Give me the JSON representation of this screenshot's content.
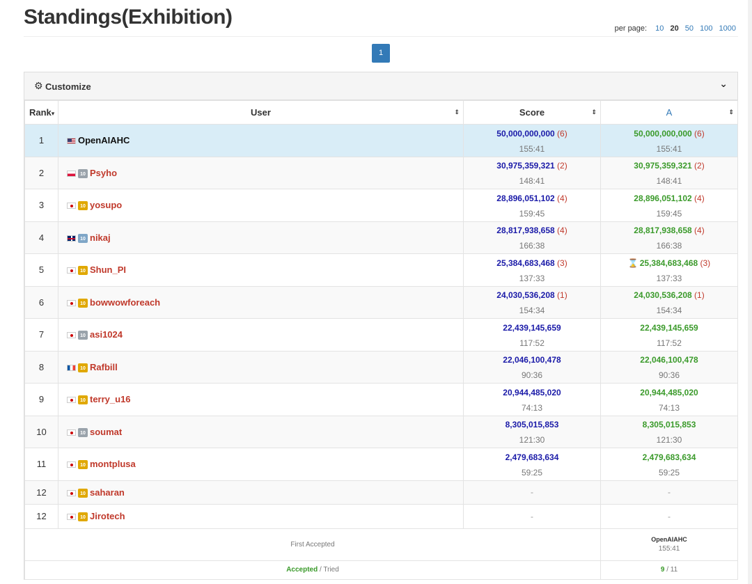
{
  "page": {
    "title": "Standings(Exhibition)",
    "per_page_label": "per page:",
    "per_page_options": [
      "10",
      "20",
      "50",
      "100",
      "1000"
    ],
    "per_page_selected": "20",
    "current_page": "1"
  },
  "customize": {
    "label": "Customize",
    "gear_icon": "gear-icon",
    "chevron_icon": "chevron-down-icon"
  },
  "table": {
    "headers": {
      "rank": "Rank",
      "user": "User",
      "score": "Score",
      "task": "A"
    },
    "rows": [
      {
        "rank": "1",
        "flag": "us",
        "crown": "",
        "user": "OpenAIAHC",
        "score": "50,000,000,000",
        "penalty": "(6)",
        "time": "155:41",
        "task_score": "50,000,000,000",
        "task_penalty": "(6)",
        "task_time": "155:41",
        "pending": false
      },
      {
        "rank": "2",
        "flag": "pl",
        "crown": "silver",
        "user": "Psyho",
        "score": "30,975,359,321",
        "penalty": "(2)",
        "time": "148:41",
        "task_score": "30,975,359,321",
        "task_penalty": "(2)",
        "task_time": "148:41",
        "pending": false
      },
      {
        "rank": "3",
        "flag": "jp",
        "crown": "gold",
        "user": "yosupo",
        "score": "28,896,051,102",
        "penalty": "(4)",
        "time": "159:45",
        "task_score": "28,896,051,102",
        "task_penalty": "(4)",
        "task_time": "159:45",
        "pending": false
      },
      {
        "rank": "4",
        "flag": "gb",
        "crown": "blue",
        "user": "nikaj",
        "score": "28,817,938,658",
        "penalty": "(4)",
        "time": "166:38",
        "task_score": "28,817,938,658",
        "task_penalty": "(4)",
        "task_time": "166:38",
        "pending": false
      },
      {
        "rank": "5",
        "flag": "jp",
        "crown": "gold",
        "user": "Shun_PI",
        "score": "25,384,683,468",
        "penalty": "(3)",
        "time": "137:33",
        "task_score": "25,384,683,468",
        "task_penalty": "(3)",
        "task_time": "137:33",
        "pending": true
      },
      {
        "rank": "6",
        "flag": "jp",
        "crown": "gold",
        "user": "bowwowforeach",
        "score": "24,030,536,208",
        "penalty": "(1)",
        "time": "154:34",
        "task_score": "24,030,536,208",
        "task_penalty": "(1)",
        "task_time": "154:34",
        "pending": false
      },
      {
        "rank": "7",
        "flag": "jp",
        "crown": "silver",
        "user": "asi1024",
        "score": "22,439,145,659",
        "penalty": "",
        "time": "117:52",
        "task_score": "22,439,145,659",
        "task_penalty": "",
        "task_time": "117:52",
        "pending": false
      },
      {
        "rank": "8",
        "flag": "fr",
        "crown": "gold",
        "user": "Rafbill",
        "score": "22,046,100,478",
        "penalty": "",
        "time": "90:36",
        "task_score": "22,046,100,478",
        "task_penalty": "",
        "task_time": "90:36",
        "pending": false
      },
      {
        "rank": "9",
        "flag": "jp",
        "crown": "gold",
        "user": "terry_u16",
        "score": "20,944,485,020",
        "penalty": "",
        "time": "74:13",
        "task_score": "20,944,485,020",
        "task_penalty": "",
        "task_time": "74:13",
        "pending": false
      },
      {
        "rank": "10",
        "flag": "jp",
        "crown": "silver",
        "user": "soumat",
        "score": "8,305,015,853",
        "penalty": "",
        "time": "121:30",
        "task_score": "8,305,015,853",
        "task_penalty": "",
        "task_time": "121:30",
        "pending": false
      },
      {
        "rank": "11",
        "flag": "jp",
        "crown": "gold",
        "user": "montplusa",
        "score": "2,479,683,634",
        "penalty": "",
        "time": "59:25",
        "task_score": "2,479,683,634",
        "task_penalty": "",
        "task_time": "59:25",
        "pending": false
      },
      {
        "rank": "12",
        "flag": "jp",
        "crown": "gold",
        "user": "saharan",
        "score": "-",
        "penalty": "",
        "time": "",
        "task_score": "-",
        "task_penalty": "",
        "task_time": "",
        "pending": false
      },
      {
        "rank": "12",
        "flag": "jp",
        "crown": "gold",
        "user": "Jirotech",
        "score": "-",
        "penalty": "",
        "time": "",
        "task_score": "-",
        "task_penalty": "",
        "task_time": "",
        "pending": false
      }
    ],
    "crown_badge_text": "10",
    "pending_icon": "hourglass-icon"
  },
  "footer": {
    "first_accepted_label": "First Accepted",
    "first_accepted_user": "OpenAIAHC",
    "first_accepted_time": "155:41",
    "accepted_label": "Accepted",
    "tried_label": " / Tried",
    "accepted_count": "9",
    "tried_count": " / 11"
  },
  "colors": {
    "pager_active": "#337ab7",
    "score_value": "#1a1aa8",
    "task_value": "#3a9a2a",
    "penalty": "#c0392b",
    "user_name": "#c0392b",
    "highlight_row": "#d9edf7"
  }
}
